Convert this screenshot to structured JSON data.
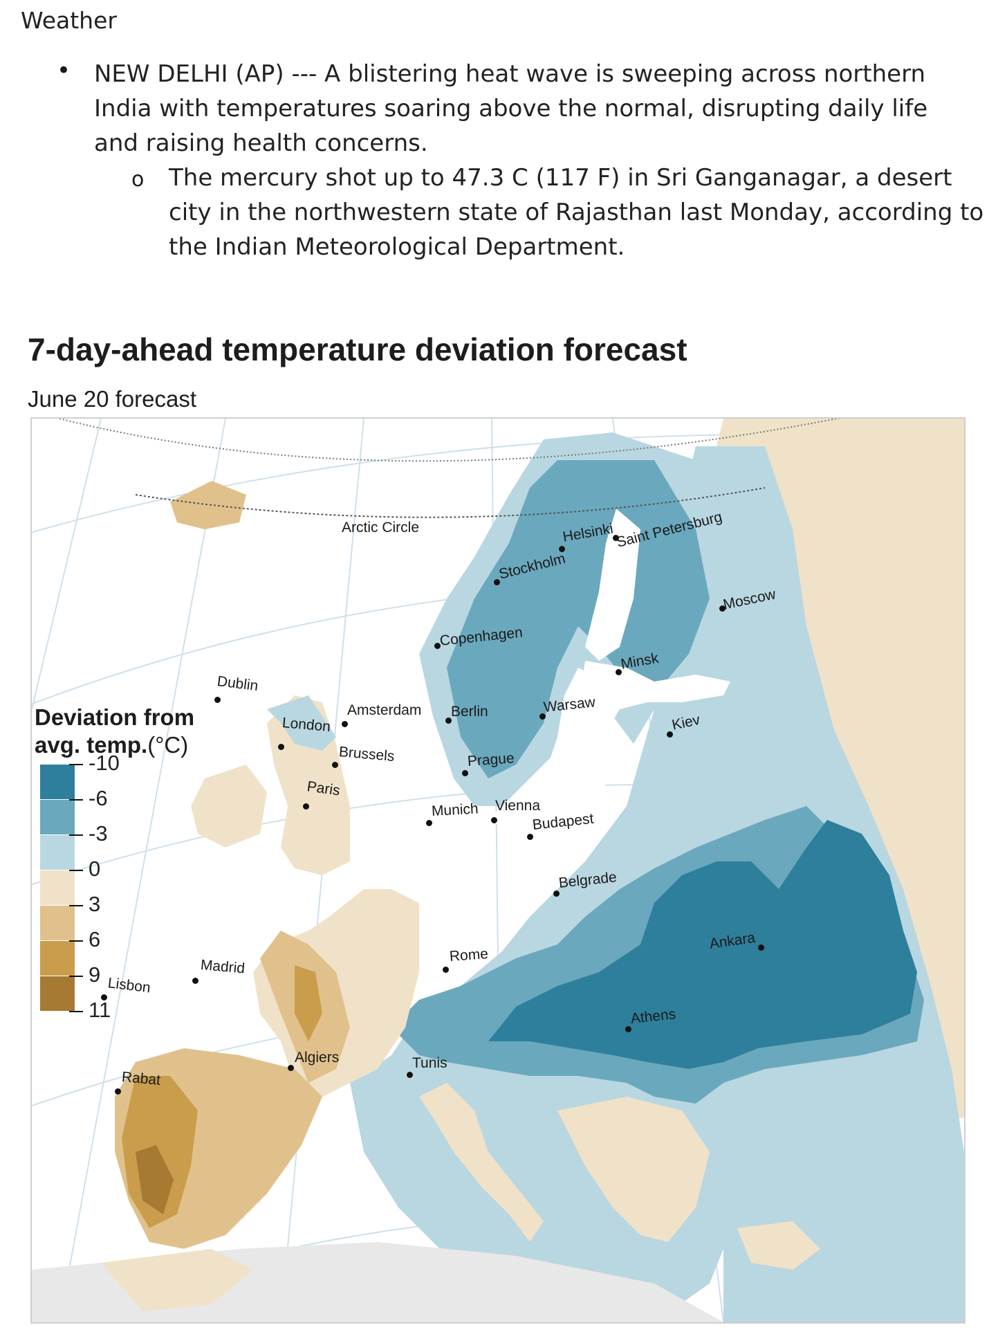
{
  "document": {
    "heading": "Weather",
    "bullet_symbol": "•",
    "sub_bullet_symbol": "o",
    "bullet_text": "NEW DELHI (AP) --- A blistering heat wave is sweeping across northern India with temperatures soaring above the normal, disrupting daily life and raising health concerns.",
    "sub_bullet_text": "The mercury shot up to 47.3 C (117 F) in Sri Ganganagar, a desert city in the northwestern state of Rajasthan last Monday, according to the Indian Meteorological Department."
  },
  "map": {
    "title": "7-day-ahead temperature deviation forecast",
    "subtitle": "June 20 forecast",
    "arctic_label": "Arctic Circle",
    "legend": {
      "title_line1": "Deviation from",
      "title_line2": "avg. temp.",
      "unit": "(°C)",
      "labels": [
        "-10",
        "-6",
        "-3",
        "0",
        "3",
        "6",
        "9",
        "11"
      ],
      "colors": [
        "#2e7f9b",
        "#6aa8bd",
        "#b9d7e1",
        "#f0e2c8",
        "#e1c18b",
        "#c99d4c",
        "#a67a32"
      ]
    },
    "cities": {
      "dublin": "Dublin",
      "london": "London",
      "amsterdam": "Amsterdam",
      "brussels": "Brussels",
      "paris": "Paris",
      "berlin": "Berlin",
      "copenhagen": "Copenhagen",
      "stockholm": "Stockholm",
      "helsinki": "Helsinki",
      "saint_petersburg": "Saint Petersburg",
      "moscow": "Moscow",
      "minsk": "Minsk",
      "warsaw": "Warsaw",
      "kiev": "Kiev",
      "prague": "Prague",
      "munich": "Munich",
      "vienna": "Vienna",
      "budapest": "Budapest",
      "belgrade": "Belgrade",
      "rome": "Rome",
      "madrid": "Madrid",
      "lisbon": "Lisbon",
      "athens": "Athens",
      "ankara": "Ankara",
      "algiers": "Algiers",
      "tunis": "Tunis",
      "rabat": "Rabat"
    }
  }
}
